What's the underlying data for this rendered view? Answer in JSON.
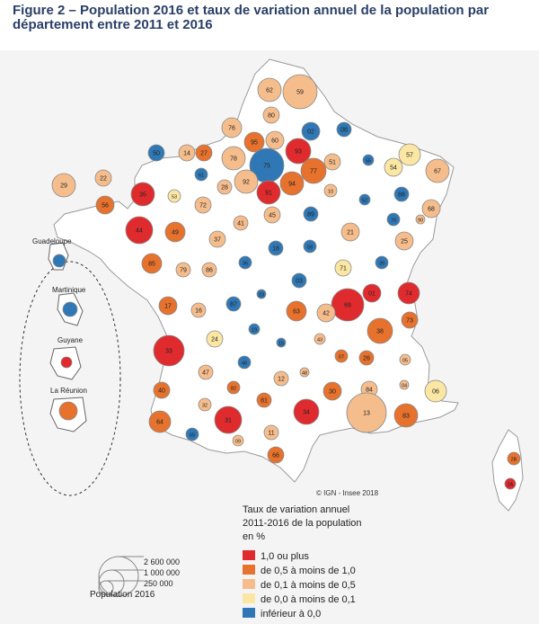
{
  "title": "Figure 2 – Population 2016 et taux de variation annuel de la population par département entre 2011 et 2016",
  "copyright": "© IGN - Insee 2018",
  "legend": {
    "title_lines": [
      "Taux de variation annuel",
      "2011-2016 de la population",
      "en %"
    ],
    "classes": [
      {
        "label": "1,0 ou plus",
        "color": "#e02b2e"
      },
      {
        "label": "de 0,5 à moins de 1,0",
        "color": "#e6722d"
      },
      {
        "label": "de 0,1 à moins de 0,5",
        "color": "#f6bd8c"
      },
      {
        "label": "de 0,0 à moins de 0,1",
        "color": "#fbe7a3"
      },
      {
        "label": "inférieur à 0,0",
        "color": "#2f78b5"
      }
    ]
  },
  "population_legend": {
    "title": "Population 2016",
    "values": [
      "2 600 000",
      "1 000 000",
      "250 000"
    ]
  },
  "overseas": [
    {
      "name": "Guadeloupe",
      "class": 4
    },
    {
      "name": "Martinique",
      "class": 4
    },
    {
      "name": "Guyane",
      "class": 0
    },
    {
      "name": "La Réunion",
      "class": 1
    }
  ],
  "departments": [
    {
      "code": "62",
      "class": 2
    },
    {
      "code": "59",
      "class": 2
    },
    {
      "code": "80",
      "class": 2
    },
    {
      "code": "76",
      "class": 2
    },
    {
      "code": "95",
      "class": 1
    },
    {
      "code": "60",
      "class": 2
    },
    {
      "code": "02",
      "class": 4
    },
    {
      "code": "08",
      "class": 4
    },
    {
      "code": "93",
      "class": 0
    },
    {
      "code": "50",
      "class": 4
    },
    {
      "code": "14",
      "class": 2
    },
    {
      "code": "27",
      "class": 1
    },
    {
      "code": "78",
      "class": 2
    },
    {
      "code": "75",
      "class": 4
    },
    {
      "code": "77",
      "class": 1
    },
    {
      "code": "51",
      "class": 2
    },
    {
      "code": "55",
      "class": 4
    },
    {
      "code": "57",
      "class": 3
    },
    {
      "code": "54",
      "class": 3
    },
    {
      "code": "67",
      "class": 2
    },
    {
      "code": "22",
      "class": 2
    },
    {
      "code": "29",
      "class": 2
    },
    {
      "code": "61",
      "class": 4
    },
    {
      "code": "92",
      "class": 2
    },
    {
      "code": "94",
      "class": 1
    },
    {
      "code": "28",
      "class": 2
    },
    {
      "code": "91",
      "class": 0
    },
    {
      "code": "35",
      "class": 0
    },
    {
      "code": "53",
      "class": 3
    },
    {
      "code": "10",
      "class": 2
    },
    {
      "code": "52",
      "class": 4
    },
    {
      "code": "88",
      "class": 4
    },
    {
      "code": "56",
      "class": 1
    },
    {
      "code": "72",
      "class": 2
    },
    {
      "code": "45",
      "class": 2
    },
    {
      "code": "89",
      "class": 4
    },
    {
      "code": "68",
      "class": 2
    },
    {
      "code": "70",
      "class": 4
    },
    {
      "code": "90",
      "class": 2
    },
    {
      "code": "44",
      "class": 0
    },
    {
      "code": "49",
      "class": 1
    },
    {
      "code": "41",
      "class": 2
    },
    {
      "code": "37",
      "class": 2
    },
    {
      "code": "21",
      "class": 2
    },
    {
      "code": "25",
      "class": 2
    },
    {
      "code": "18",
      "class": 4
    },
    {
      "code": "58",
      "class": 4
    },
    {
      "code": "85",
      "class": 1
    },
    {
      "code": "79",
      "class": 2
    },
    {
      "code": "86",
      "class": 2
    },
    {
      "code": "36",
      "class": 4
    },
    {
      "code": "71",
      "class": 3
    },
    {
      "code": "39",
      "class": 4
    },
    {
      "code": "03",
      "class": 4
    },
    {
      "code": "01",
      "class": 0
    },
    {
      "code": "74",
      "class": 0
    },
    {
      "code": "17",
      "class": 1
    },
    {
      "code": "16",
      "class": 2
    },
    {
      "code": "87",
      "class": 4
    },
    {
      "code": "23",
      "class": 4
    },
    {
      "code": "69",
      "class": 0
    },
    {
      "code": "63",
      "class": 1
    },
    {
      "code": "42",
      "class": 2
    },
    {
      "code": "73",
      "class": 1
    },
    {
      "code": "38",
      "class": 1
    },
    {
      "code": "24",
      "class": 3
    },
    {
      "code": "19",
      "class": 4
    },
    {
      "code": "15",
      "class": 4
    },
    {
      "code": "43",
      "class": 2
    },
    {
      "code": "33",
      "class": 0
    },
    {
      "code": "47",
      "class": 2
    },
    {
      "code": "46",
      "class": 4
    },
    {
      "code": "07",
      "class": 1
    },
    {
      "code": "26",
      "class": 1
    },
    {
      "code": "05",
      "class": 2
    },
    {
      "code": "12",
      "class": 2
    },
    {
      "code": "48",
      "class": 2
    },
    {
      "code": "40",
      "class": 1
    },
    {
      "code": "82",
      "class": 1
    },
    {
      "code": "30",
      "class": 1
    },
    {
      "code": "84",
      "class": 2
    },
    {
      "code": "04",
      "class": 2
    },
    {
      "code": "06",
      "class": 3
    },
    {
      "code": "32",
      "class": 2
    },
    {
      "code": "81",
      "class": 1
    },
    {
      "code": "13",
      "class": 2
    },
    {
      "code": "83",
      "class": 1
    },
    {
      "code": "64",
      "class": 1
    },
    {
      "code": "31",
      "class": 0
    },
    {
      "code": "34",
      "class": 0
    },
    {
      "code": "11",
      "class": 2
    },
    {
      "code": "65",
      "class": 4
    },
    {
      "code": "09",
      "class": 2
    },
    {
      "code": "66",
      "class": 1
    },
    {
      "code": "2B",
      "class": 1
    },
    {
      "code": "2A",
      "class": 0
    }
  ]
}
